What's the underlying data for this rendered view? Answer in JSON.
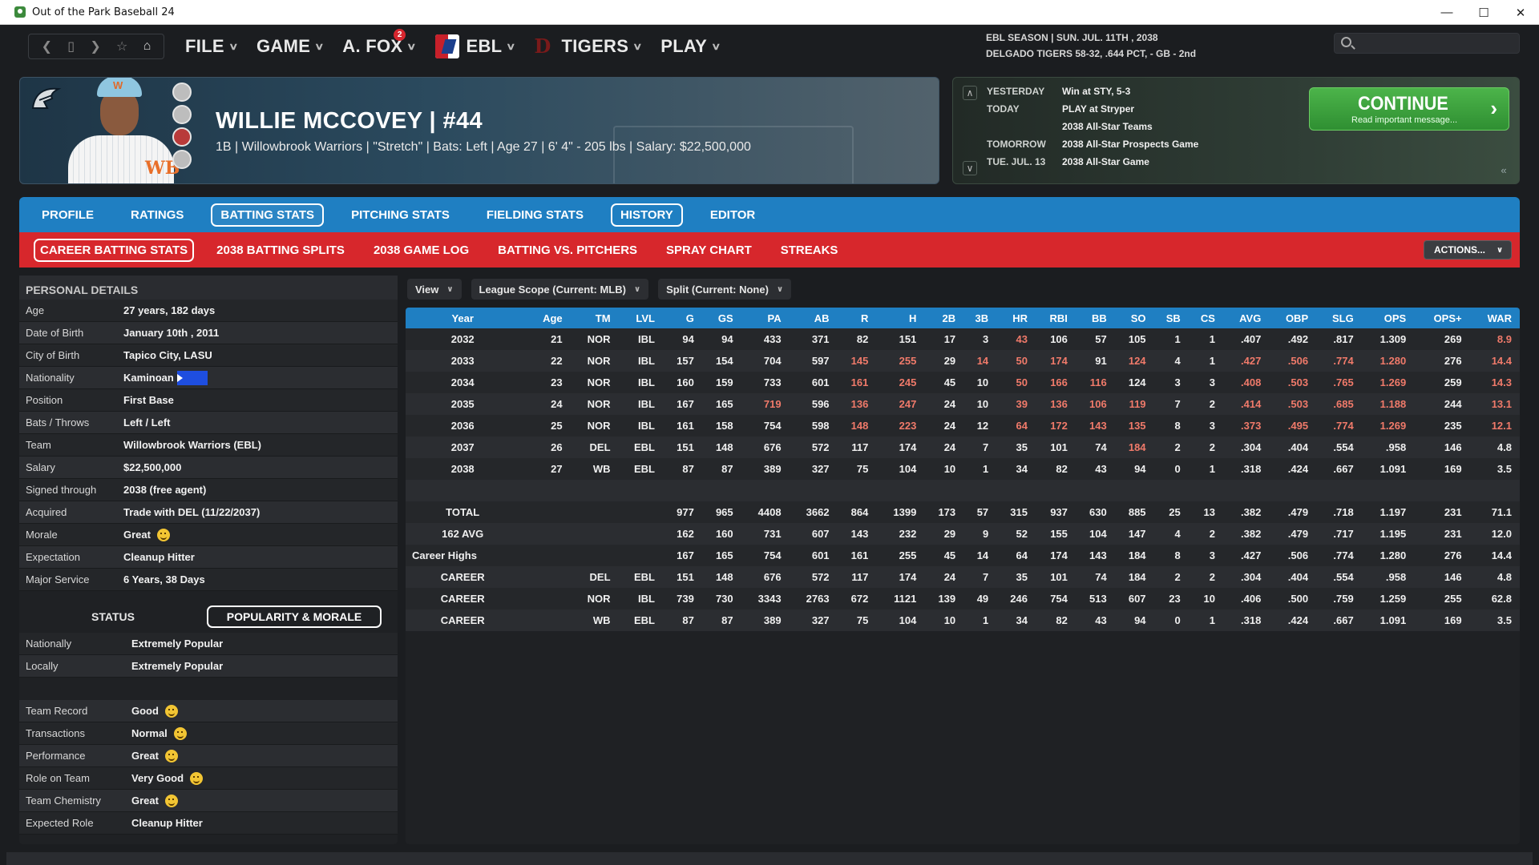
{
  "window": {
    "title": "Out of the Park Baseball 24",
    "minimize": "—",
    "maximize": "☐",
    "close": "✕"
  },
  "nav": {
    "menus": [
      {
        "label": "FILE"
      },
      {
        "label": "GAME"
      },
      {
        "label": "A. FOX",
        "badge": "2"
      },
      {
        "label": "EBL"
      },
      {
        "label": "TIGERS"
      },
      {
        "label": "PLAY"
      }
    ],
    "season_line1": "EBL SEASON  |  SUN. JUL. 11TH , 2038",
    "season_line2": "DELGADO TIGERS  58-32, .644 PCT, - GB - 2nd",
    "search_placeholder": ""
  },
  "player": {
    "name": "WILLIE MCCOVEY  |  #44",
    "info": "1B | Willowbrook Warriors  |  \"Stretch\" | Bats: Left  |  Age 27  |  6' 4\" - 205 lbs  |  Salary: $22,500,000",
    "cap_logo": "W",
    "jersey_logo": "WB"
  },
  "schedule": {
    "rows": [
      {
        "label": "YESTERDAY",
        "value": "Win at STY, 5-3"
      },
      {
        "label": "TODAY",
        "value": "PLAY at Stryper"
      },
      {
        "label": "",
        "value": "2038 All-Star Teams"
      },
      {
        "label": "TOMORROW",
        "value": "2038 All-Star Prospects Game"
      },
      {
        "label": "TUE. JUL. 13",
        "value": "2038 All-Star Game"
      }
    ],
    "continue_label": "CONTINUE",
    "continue_sub": "Read important message..."
  },
  "tabs": [
    "PROFILE",
    "RATINGS",
    "BATTING STATS",
    "PITCHING STATS",
    "FIELDING STATS",
    "HISTORY",
    "EDITOR"
  ],
  "subtabs": [
    "CAREER BATTING STATS",
    "2038 BATTING SPLITS",
    "2038 GAME LOG",
    "BATTING VS. PITCHERS",
    "SPRAY CHART",
    "STREAKS"
  ],
  "actions_label": "ACTIONS...",
  "personal": {
    "title": "PERSONAL DETAILS",
    "rows": [
      {
        "k": "Age",
        "v": "27 years, 182 days"
      },
      {
        "k": "Date of Birth",
        "v": "January 10th , 2011"
      },
      {
        "k": "City of Birth",
        "v": "Tapico City, LASU"
      },
      {
        "k": "Nationality",
        "v": "Kaminoan"
      },
      {
        "k": "Position",
        "v": "First Base"
      },
      {
        "k": "Bats / Throws",
        "v": "Left / Left"
      },
      {
        "k": "Team",
        "v": "Willowbrook Warriors (EBL)"
      },
      {
        "k": "Salary",
        "v": "$22,500,000"
      },
      {
        "k": "Signed through",
        "v": "2038 (free agent)"
      },
      {
        "k": "Acquired",
        "v": "Trade with DEL (11/22/2037)"
      },
      {
        "k": "Morale",
        "v": "Great"
      },
      {
        "k": "Expectation",
        "v": "Cleanup Hitter"
      },
      {
        "k": "Major Service",
        "v": "6 Years, 38 Days"
      }
    ]
  },
  "status": {
    "label": "STATUS",
    "pop_label": "POPULARITY & MORALE",
    "rows": [
      {
        "k": "Nationally",
        "v": "Extremely Popular"
      },
      {
        "k": "Locally",
        "v": "Extremely Popular"
      },
      {
        "k": "Team Record",
        "v": "Good"
      },
      {
        "k": "Transactions",
        "v": "Normal"
      },
      {
        "k": "Performance",
        "v": "Great"
      },
      {
        "k": "Role on Team",
        "v": "Very Good"
      },
      {
        "k": "Team Chemistry",
        "v": "Great"
      },
      {
        "k": "Expected Role",
        "v": "Cleanup Hitter"
      }
    ]
  },
  "filters": [
    "View",
    "League Scope (Current: MLB)",
    "Split (Current: None)"
  ],
  "stats": {
    "columns": [
      "Year",
      "Age",
      "TM",
      "LVL",
      "G",
      "GS",
      "PA",
      "AB",
      "R",
      "H",
      "2B",
      "3B",
      "HR",
      "RBI",
      "BB",
      "SO",
      "SB",
      "CS",
      "AVG",
      "OBP",
      "SLG",
      "OPS",
      "OPS+",
      "WAR"
    ],
    "highlight_color": "#f07a6a",
    "rows": [
      {
        "cells": [
          "2032",
          "21",
          "NOR",
          "IBL",
          "94",
          "94",
          "433",
          "371",
          "82",
          "151",
          "17",
          "3",
          "43",
          "106",
          "57",
          "105",
          "1",
          "1",
          ".407",
          ".492",
          ".817",
          "1.309",
          "269",
          "8.9"
        ],
        "hl": [
          12,
          23
        ]
      },
      {
        "cells": [
          "2033",
          "22",
          "NOR",
          "IBL",
          "157",
          "154",
          "704",
          "597",
          "145",
          "255",
          "29",
          "14",
          "50",
          "174",
          "91",
          "124",
          "4",
          "1",
          ".427",
          ".506",
          ".774",
          "1.280",
          "276",
          "14.4"
        ],
        "hl": [
          8,
          9,
          11,
          12,
          13,
          15,
          18,
          19,
          20,
          21,
          23
        ]
      },
      {
        "cells": [
          "2034",
          "23",
          "NOR",
          "IBL",
          "160",
          "159",
          "733",
          "601",
          "161",
          "245",
          "45",
          "10",
          "50",
          "166",
          "116",
          "124",
          "3",
          "3",
          ".408",
          ".503",
          ".765",
          "1.269",
          "259",
          "14.3"
        ],
        "hl": [
          8,
          9,
          12,
          13,
          14,
          18,
          19,
          20,
          21,
          23
        ]
      },
      {
        "cells": [
          "2035",
          "24",
          "NOR",
          "IBL",
          "167",
          "165",
          "719",
          "596",
          "136",
          "247",
          "24",
          "10",
          "39",
          "136",
          "106",
          "119",
          "7",
          "2",
          ".414",
          ".503",
          ".685",
          "1.188",
          "244",
          "13.1"
        ],
        "hl": [
          6,
          8,
          9,
          12,
          13,
          14,
          15,
          18,
          19,
          20,
          21,
          23
        ]
      },
      {
        "cells": [
          "2036",
          "25",
          "NOR",
          "IBL",
          "161",
          "158",
          "754",
          "598",
          "148",
          "223",
          "24",
          "12",
          "64",
          "172",
          "143",
          "135",
          "8",
          "3",
          ".373",
          ".495",
          ".774",
          "1.269",
          "235",
          "12.1"
        ],
        "hl": [
          8,
          9,
          12,
          13,
          14,
          15,
          18,
          19,
          20,
          21,
          23
        ]
      },
      {
        "cells": [
          "2037",
          "26",
          "DEL",
          "EBL",
          "151",
          "148",
          "676",
          "572",
          "117",
          "174",
          "24",
          "7",
          "35",
          "101",
          "74",
          "184",
          "2",
          "2",
          ".304",
          ".404",
          ".554",
          ".958",
          "146",
          "4.8"
        ],
        "hl": [
          15
        ]
      },
      {
        "cells": [
          "2038",
          "27",
          "WB",
          "EBL",
          "87",
          "87",
          "389",
          "327",
          "75",
          "104",
          "10",
          "1",
          "34",
          "82",
          "43",
          "94",
          "0",
          "1",
          ".318",
          ".424",
          ".667",
          "1.091",
          "169",
          "3.5"
        ],
        "hl": []
      },
      {
        "blank": true
      },
      {
        "cells": [
          "TOTAL",
          "",
          "",
          "",
          "977",
          "965",
          "4408",
          "3662",
          "864",
          "1399",
          "173",
          "57",
          "315",
          "937",
          "630",
          "885",
          "25",
          "13",
          ".382",
          ".479",
          ".718",
          "1.197",
          "231",
          "71.1"
        ],
        "hl": []
      },
      {
        "cells": [
          "162 AVG",
          "",
          "",
          "",
          "162",
          "160",
          "731",
          "607",
          "143",
          "232",
          "29",
          "9",
          "52",
          "155",
          "104",
          "147",
          "4",
          "2",
          ".382",
          ".479",
          ".717",
          "1.195",
          "231",
          "12.0"
        ],
        "hl": []
      },
      {
        "cells": [
          "Career Highs",
          "",
          "",
          "",
          "167",
          "165",
          "754",
          "601",
          "161",
          "255",
          "45",
          "14",
          "64",
          "174",
          "143",
          "184",
          "8",
          "3",
          ".427",
          ".506",
          ".774",
          "1.280",
          "276",
          "14.4"
        ],
        "hl": []
      },
      {
        "cells": [
          "CAREER",
          "",
          "DEL",
          "EBL",
          "151",
          "148",
          "676",
          "572",
          "117",
          "174",
          "24",
          "7",
          "35",
          "101",
          "74",
          "184",
          "2",
          "2",
          ".304",
          ".404",
          ".554",
          ".958",
          "146",
          "4.8"
        ],
        "hl": []
      },
      {
        "cells": [
          "CAREER",
          "",
          "NOR",
          "IBL",
          "739",
          "730",
          "3343",
          "2763",
          "672",
          "1121",
          "139",
          "49",
          "246",
          "754",
          "513",
          "607",
          "23",
          "10",
          ".406",
          ".500",
          ".759",
          "1.259",
          "255",
          "62.8"
        ],
        "hl": []
      },
      {
        "cells": [
          "CAREER",
          "",
          "WB",
          "EBL",
          "87",
          "87",
          "389",
          "327",
          "75",
          "104",
          "10",
          "1",
          "34",
          "82",
          "43",
          "94",
          "0",
          "1",
          ".318",
          ".424",
          ".667",
          "1.091",
          "169",
          "3.5"
        ],
        "hl": []
      }
    ]
  }
}
